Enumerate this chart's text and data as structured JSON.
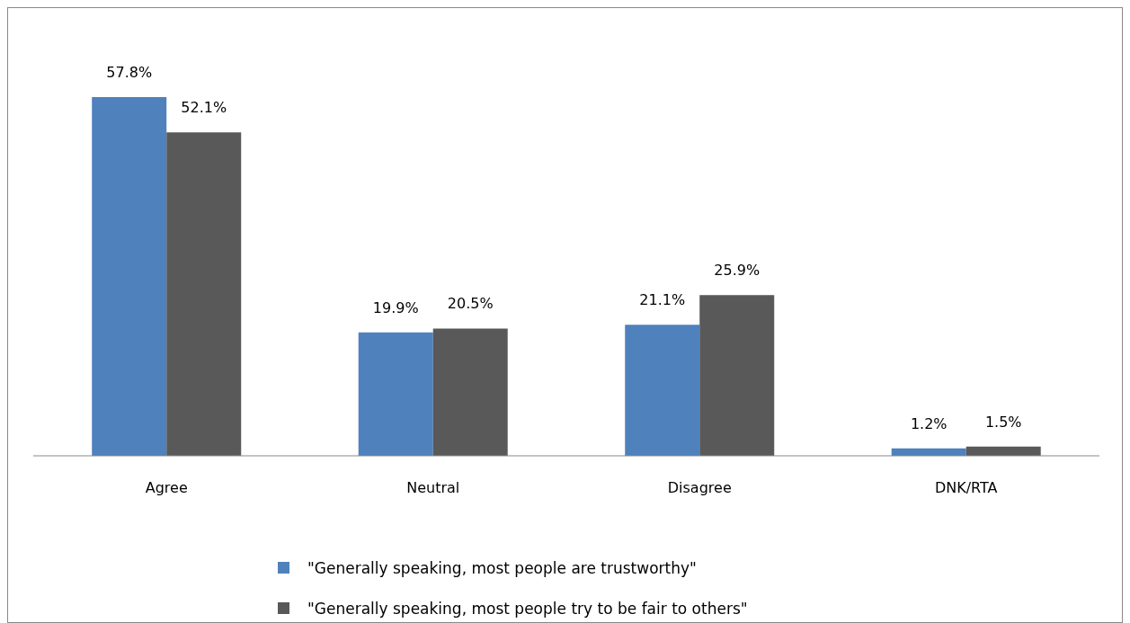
{
  "chart_data": {
    "type": "bar",
    "categories": [
      "Agree",
      "Neutral",
      "Disagree",
      "DNK/RTA"
    ],
    "series": [
      {
        "name": "\"Generally speaking, most people are trustworthy\"",
        "color": "#4f81bd",
        "values": [
          57.8,
          19.9,
          21.1,
          1.2
        ],
        "value_labels": [
          "57.8%",
          "19.9%",
          "21.1%",
          "1.2%"
        ]
      },
      {
        "name": "\"Generally speaking, most people try to be fair to others\"",
        "color": "#595959",
        "values": [
          52.1,
          20.5,
          25.9,
          1.5
        ],
        "value_labels": [
          "52.1%",
          "20.5%",
          "25.9%",
          "1.5%"
        ]
      }
    ],
    "legend": "bottom",
    "grid": false
  }
}
